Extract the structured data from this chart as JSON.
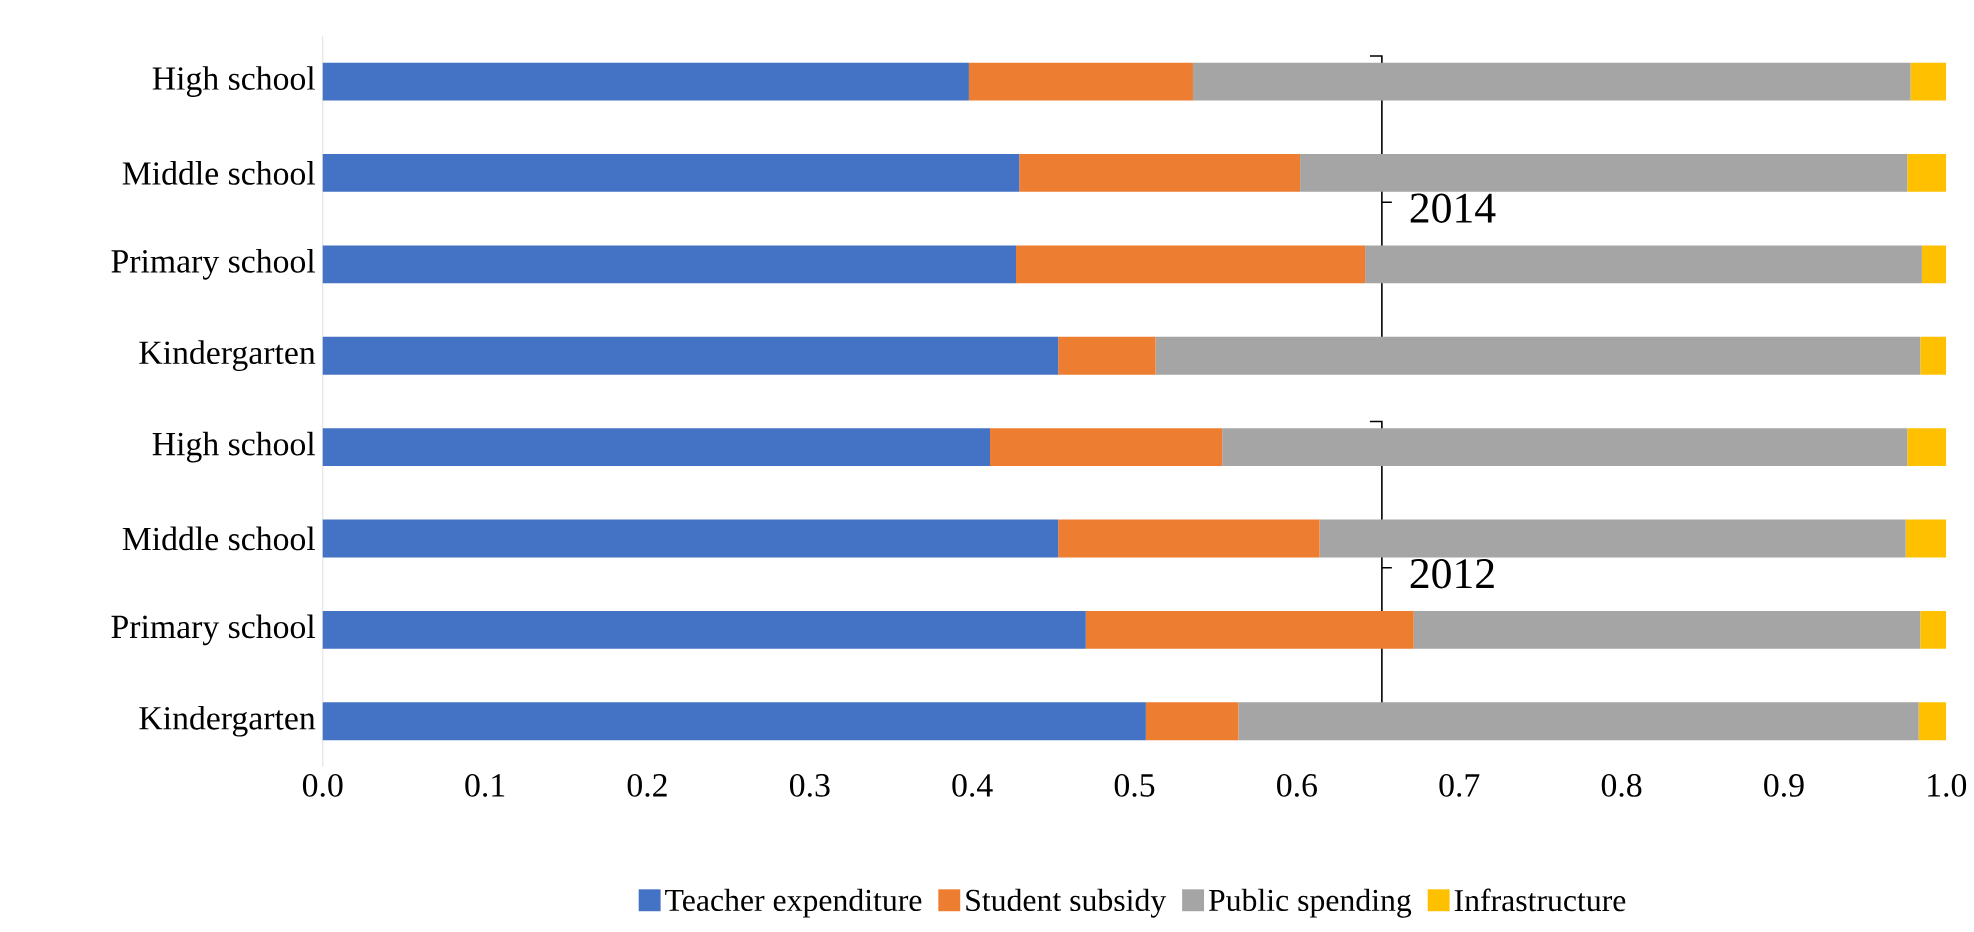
{
  "chart_data": {
    "type": "bar",
    "orientation": "horizontal",
    "stacked": true,
    "categories": [
      "High school",
      "Middle school",
      "Primary school",
      "Kindergarten",
      "High school",
      "Middle school",
      "Primary school",
      "Kindergarten"
    ],
    "series": [
      {
        "name": "Teacher expenditure",
        "color": "#4472c4",
        "values": [
          0.398,
          0.429,
          0.427,
          0.453,
          0.411,
          0.453,
          0.47,
          0.507
        ]
      },
      {
        "name": "Student subsidy",
        "color": "#ed7d31",
        "values": [
          0.138,
          0.173,
          0.215,
          0.06,
          0.143,
          0.161,
          0.202,
          0.057
        ]
      },
      {
        "name": "Public spending",
        "color": "#a5a5a5",
        "values": [
          0.442,
          0.374,
          0.343,
          0.471,
          0.422,
          0.361,
          0.312,
          0.419
        ]
      },
      {
        "name": "Infrastructure",
        "color": "#ffc000",
        "values": [
          0.022,
          0.024,
          0.015,
          0.016,
          0.024,
          0.025,
          0.016,
          0.017
        ]
      }
    ],
    "xlim": [
      0,
      1
    ],
    "xticks": [
      {
        "value": 0,
        "label": "0.0"
      },
      {
        "value": 0.1,
        "label": "0.1"
      },
      {
        "value": 0.2,
        "label": "0.2"
      },
      {
        "value": 0.3,
        "label": "0.3"
      },
      {
        "value": 0.4,
        "label": "0.4"
      },
      {
        "value": 0.5,
        "label": "0.5"
      },
      {
        "value": 0.6,
        "label": "0.6"
      },
      {
        "value": 0.7,
        "label": "0.7"
      },
      {
        "value": 0.8,
        "label": "0.8"
      },
      {
        "value": 0.9,
        "label": "0.9"
      },
      {
        "value": 1,
        "label": "1.0"
      }
    ],
    "annotations": [
      "2014",
      "2012"
    ],
    "legend": "bottom",
    "grid": false
  }
}
